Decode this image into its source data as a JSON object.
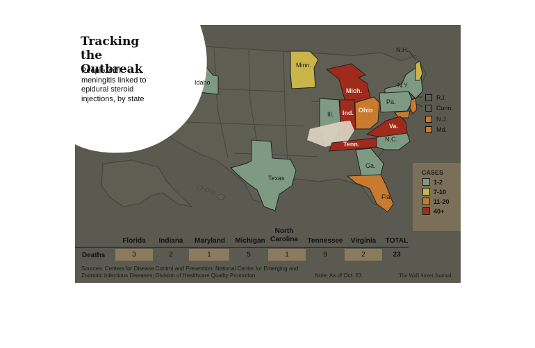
{
  "title": "Tracking the Outbreak",
  "subtitle": "People with meningitis linked to epidural steroid injections, by state",
  "colors": {
    "background": "#5a5a50",
    "states_base": "#5e5e53",
    "state_borders": "#46463e",
    "cases_1_2": "#7e9a83",
    "cases_7_10": "#c9b549",
    "cases_11_20": "#c87b2e",
    "cases_40_plus": "#a02a1c"
  },
  "legend": {
    "title": "CASES",
    "items": [
      {
        "label": "1-2",
        "color": "#7e9a83"
      },
      {
        "label": "7-10",
        "color": "#c9b549"
      },
      {
        "label": "11-20",
        "color": "#c87b2e"
      },
      {
        "label": "40+",
        "color": "#a02a1c"
      }
    ]
  },
  "small_state_keys": [
    {
      "label": "R.I.",
      "color": "#5e5e53"
    },
    {
      "label": "Conn.",
      "color": "#5e5e53"
    },
    {
      "label": "N.J.",
      "color": "#c87b2e"
    },
    {
      "label": "Md.",
      "color": "#c87b2e"
    }
  ],
  "state_labels": {
    "idaho": "Idaho",
    "minn": "Minn.",
    "mich": "Mich.",
    "ill": "Ill.",
    "ind": "Ind.",
    "ohio": "Ohio",
    "pa": "Pa.",
    "ny": "N.Y.",
    "nh": "N.H.",
    "va": "Va.",
    "nc": "N.C.",
    "tenn": "Tenn.",
    "ga": "Ga.",
    "fla": "Fla.",
    "texas": "Texas"
  },
  "deaths_table": {
    "row_label": "Deaths",
    "columns": [
      "Florida",
      "Indiana",
      "Maryland",
      "Michigan",
      "North Carolina",
      "Tennessee",
      "Virginia",
      "TOTAL"
    ],
    "values": [
      "3",
      "2",
      "1",
      "5",
      "1",
      "9",
      "2",
      "23"
    ]
  },
  "footer": {
    "sources": "Sources: Centers for Disease Control and Prevention; National Center for Emerging and Zoonotic Infectious Diseases; Division of Healthcare Quality Promotion",
    "note": "Note: As of Oct. 23",
    "credit": "The Wall Street Journal"
  }
}
